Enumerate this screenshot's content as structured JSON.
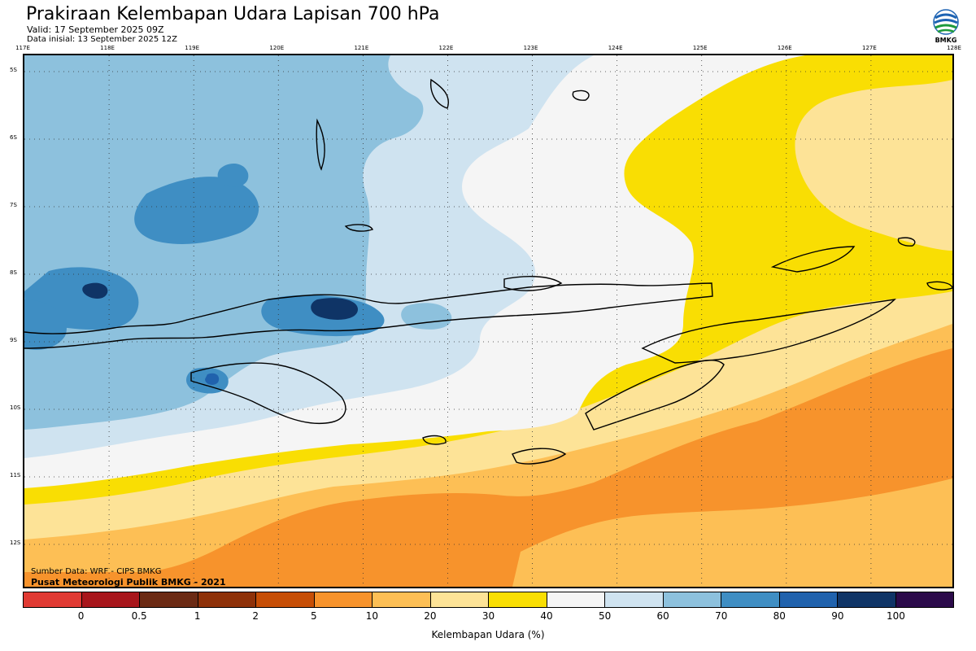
{
  "header": {
    "title": "Prakiraan Kelembapan Udara Lapisan 700 hPa",
    "valid": "Valid: 17 September 2025 09Z",
    "initial": "Data inisial: 13 September 2025 12Z"
  },
  "logo": {
    "text": "BMKG",
    "icon": "bmkg-logo"
  },
  "map": {
    "x_ticks": [
      "117E",
      "118E",
      "119E",
      "120E",
      "121E",
      "122E",
      "123E",
      "124E",
      "125E",
      "126E",
      "127E",
      "128E"
    ],
    "y_ticks": [
      "5S",
      "6S",
      "7S",
      "8S",
      "9S",
      "10S",
      "11S",
      "12S"
    ],
    "grid": true
  },
  "credits": {
    "source": "Sumber Data: WRF - CIPS BMKG",
    "publisher": "Pusat Meteorologi Publik BMKG - 2021"
  },
  "colorbar": {
    "colors": [
      "#e03a33",
      "#a8161c",
      "#6b2a14",
      "#8e3109",
      "#c64e06",
      "#f7932c",
      "#fdbf55",
      "#fde397",
      "#f9de03",
      "#f5f5f5",
      "#cfe3f0",
      "#8dc1dd",
      "#3f8ec3",
      "#2062ad",
      "#0f3466",
      "#2b0a4a"
    ],
    "labels": [
      "0",
      "0.5",
      "1",
      "2",
      "5",
      "10",
      "20",
      "30",
      "40",
      "50",
      "60",
      "70",
      "80",
      "90",
      "100"
    ],
    "unit": "Kelembapan Udara (%)"
  }
}
